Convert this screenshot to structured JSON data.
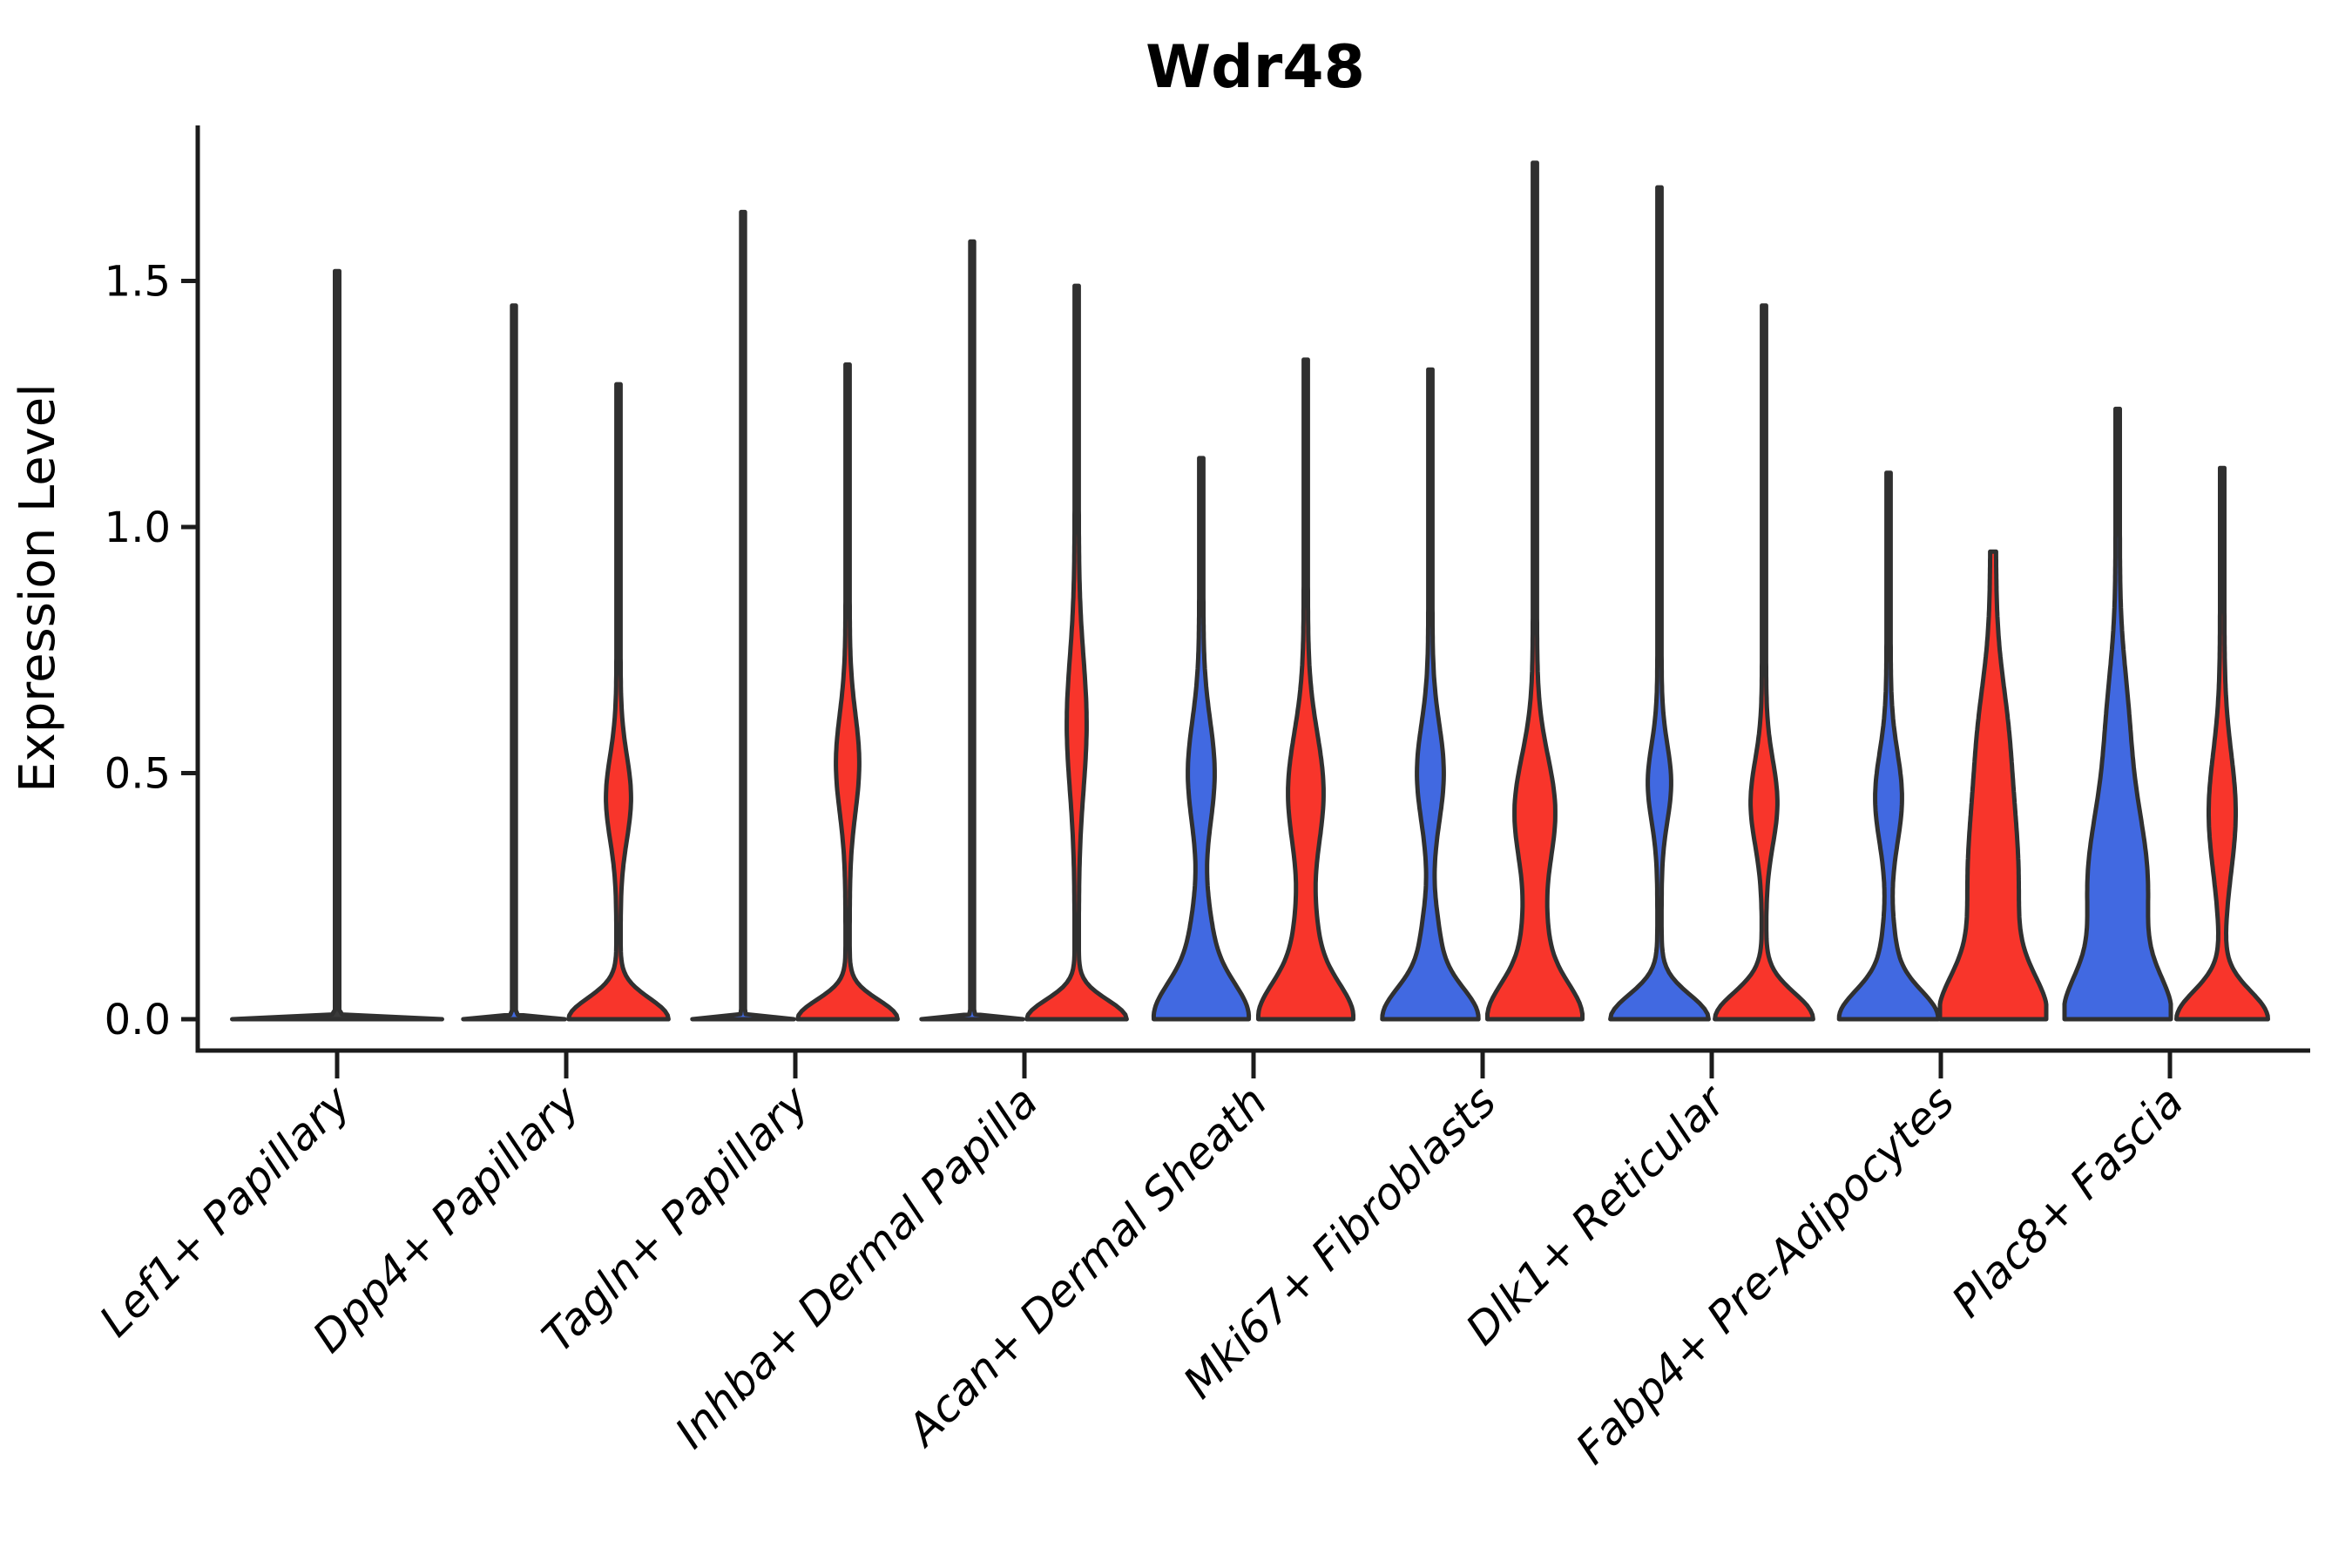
{
  "figure": {
    "title": "Wdr48",
    "background": "#ffffff"
  },
  "colors": {
    "blue": "#4169E1",
    "red": "#F8352B",
    "dark": "#3a3a3a",
    "outline": "#303030",
    "axis": "#1b1b1b",
    "text": "#000000"
  },
  "chart_data": {
    "type": "violin",
    "title": "Wdr48",
    "xlabel": "",
    "ylabel": "Expression Level",
    "ylim": [
      -0.06,
      1.82
    ],
    "yticks": [
      0.0,
      0.5,
      1.0,
      1.5
    ],
    "ytick_labels": [
      "0.0",
      "0.5",
      "1.0",
      "1.5"
    ],
    "grid": false,
    "legend": "none",
    "split_violins": true,
    "series_colors": {
      "left": "#4169E1",
      "right": "#F8352B"
    },
    "categories": [
      "Lef1+ Papillary",
      "Dpp4+ Papillary",
      "Tagln+ Papillary",
      "Inhba+ Dermal Papilla",
      "Acan+ Dermal Sheath",
      "Mki67+ Fibroblasts",
      "Dlk1+ Reticular",
      "Fabp4+ Pre-Adipocytes",
      "Plac8+ Fascia"
    ],
    "violins": [
      {
        "cat": 0,
        "side": "full",
        "color": "dark",
        "max": 1.52,
        "c0": 2.5,
        "comps": [
          [
            118,
            0,
            0.005
          ]
        ]
      },
      {
        "cat": 1,
        "side": "left",
        "color": "blue",
        "max": 1.45,
        "c0": 2.2,
        "comps": [
          [
            56,
            0,
            0.005
          ]
        ]
      },
      {
        "cat": 1,
        "side": "right",
        "color": "red",
        "max": 1.29,
        "c0": 2.4,
        "comps": [
          [
            55,
            0,
            0.06
          ],
          [
            12,
            0.45,
            0.12
          ]
        ]
      },
      {
        "cat": 2,
        "side": "left",
        "color": "blue",
        "max": 1.64,
        "c0": 2.2,
        "comps": [
          [
            56,
            0,
            0.005
          ]
        ]
      },
      {
        "cat": 2,
        "side": "right",
        "color": "red",
        "max": 1.33,
        "c0": 2.4,
        "comps": [
          [
            55,
            0,
            0.055
          ],
          [
            11,
            0.52,
            0.14
          ]
        ]
      },
      {
        "cat": 3,
        "side": "left",
        "color": "blue",
        "max": 1.58,
        "c0": 2.2,
        "comps": [
          [
            56,
            0,
            0.005
          ]
        ]
      },
      {
        "cat": 3,
        "side": "right",
        "color": "red",
        "max": 1.49,
        "c0": 2.4,
        "comps": [
          [
            55,
            0,
            0.055
          ],
          [
            9,
            0.6,
            0.19
          ]
        ]
      },
      {
        "cat": 4,
        "side": "left",
        "color": "blue",
        "max": 1.14,
        "c0": 2.4,
        "comps": [
          [
            50,
            0,
            0.1
          ],
          [
            10,
            0.15,
            0.12
          ],
          [
            13,
            0.5,
            0.15
          ]
        ]
      },
      {
        "cat": 4,
        "side": "right",
        "color": "red",
        "max": 1.34,
        "c0": 2.4,
        "comps": [
          [
            50,
            0,
            0.1
          ],
          [
            10,
            0.15,
            0.12
          ],
          [
            18,
            0.46,
            0.17
          ]
        ]
      },
      {
        "cat": 5,
        "side": "left",
        "color": "blue",
        "max": 1.32,
        "c0": 2.4,
        "comps": [
          [
            52,
            0,
            0.09
          ],
          [
            8,
            0.15,
            0.1
          ],
          [
            13,
            0.5,
            0.14
          ]
        ]
      },
      {
        "cat": 5,
        "side": "right",
        "color": "red",
        "max": 1.74,
        "c0": 2.4,
        "comps": [
          [
            50,
            0,
            0.1
          ],
          [
            10,
            0.15,
            0.12
          ],
          [
            21,
            0.42,
            0.16
          ]
        ]
      },
      {
        "cat": 6,
        "side": "left",
        "color": "blue",
        "max": 1.69,
        "c0": 2.4,
        "comps": [
          [
            54,
            0,
            0.07
          ],
          [
            11,
            0.48,
            0.11
          ]
        ]
      },
      {
        "cat": 6,
        "side": "right",
        "color": "red",
        "max": 1.45,
        "c0": 2.4,
        "comps": [
          [
            54,
            0,
            0.075
          ],
          [
            13,
            0.44,
            0.12
          ]
        ]
      },
      {
        "cat": 7,
        "side": "left",
        "color": "blue",
        "max": 1.11,
        "c0": 2.4,
        "comps": [
          [
            53,
            0,
            0.08
          ],
          [
            6,
            0.12,
            0.1
          ],
          [
            13,
            0.45,
            0.13
          ]
        ]
      },
      {
        "cat": 7,
        "side": "right",
        "color": "red",
        "max": 0.95,
        "c0": 3.2,
        "comps": [
          [
            48,
            0,
            0.12
          ],
          [
            26,
            0.28,
            0.3
          ],
          [
            6,
            0.6,
            0.15
          ]
        ]
      },
      {
        "cat": 8,
        "side": "left",
        "color": "blue",
        "max": 1.24,
        "c0": 2.5,
        "comps": [
          [
            50,
            0,
            0.12
          ],
          [
            32,
            0.27,
            0.24
          ],
          [
            7,
            0.62,
            0.16
          ]
        ]
      },
      {
        "cat": 8,
        "side": "right",
        "color": "red",
        "max": 1.12,
        "c0": 2.5,
        "comps": [
          [
            50,
            0,
            0.08
          ],
          [
            13,
            0.42,
            0.17
          ]
        ]
      }
    ]
  }
}
